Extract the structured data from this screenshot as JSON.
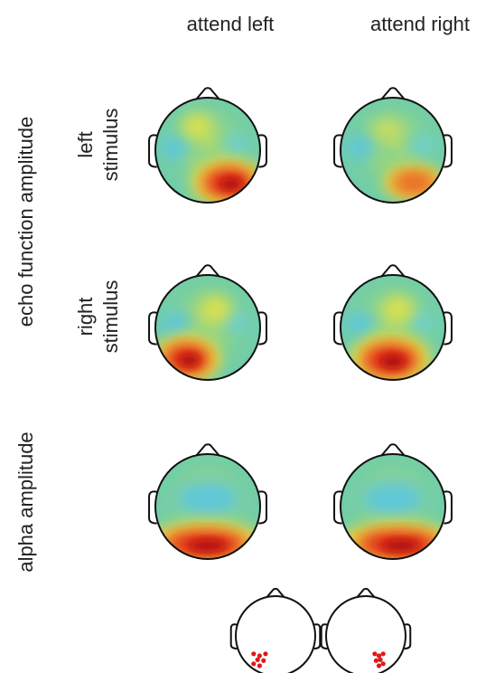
{
  "columns": [
    "attend left",
    "attend right"
  ],
  "row_groups": [
    {
      "label": "echo function amplitude",
      "rows": [
        {
          "label_lines": [
            "left",
            "stimulus"
          ]
        },
        {
          "label_lines": [
            "right",
            "stimulus"
          ]
        }
      ]
    },
    {
      "label": "alpha amplitude"
    }
  ]
}
